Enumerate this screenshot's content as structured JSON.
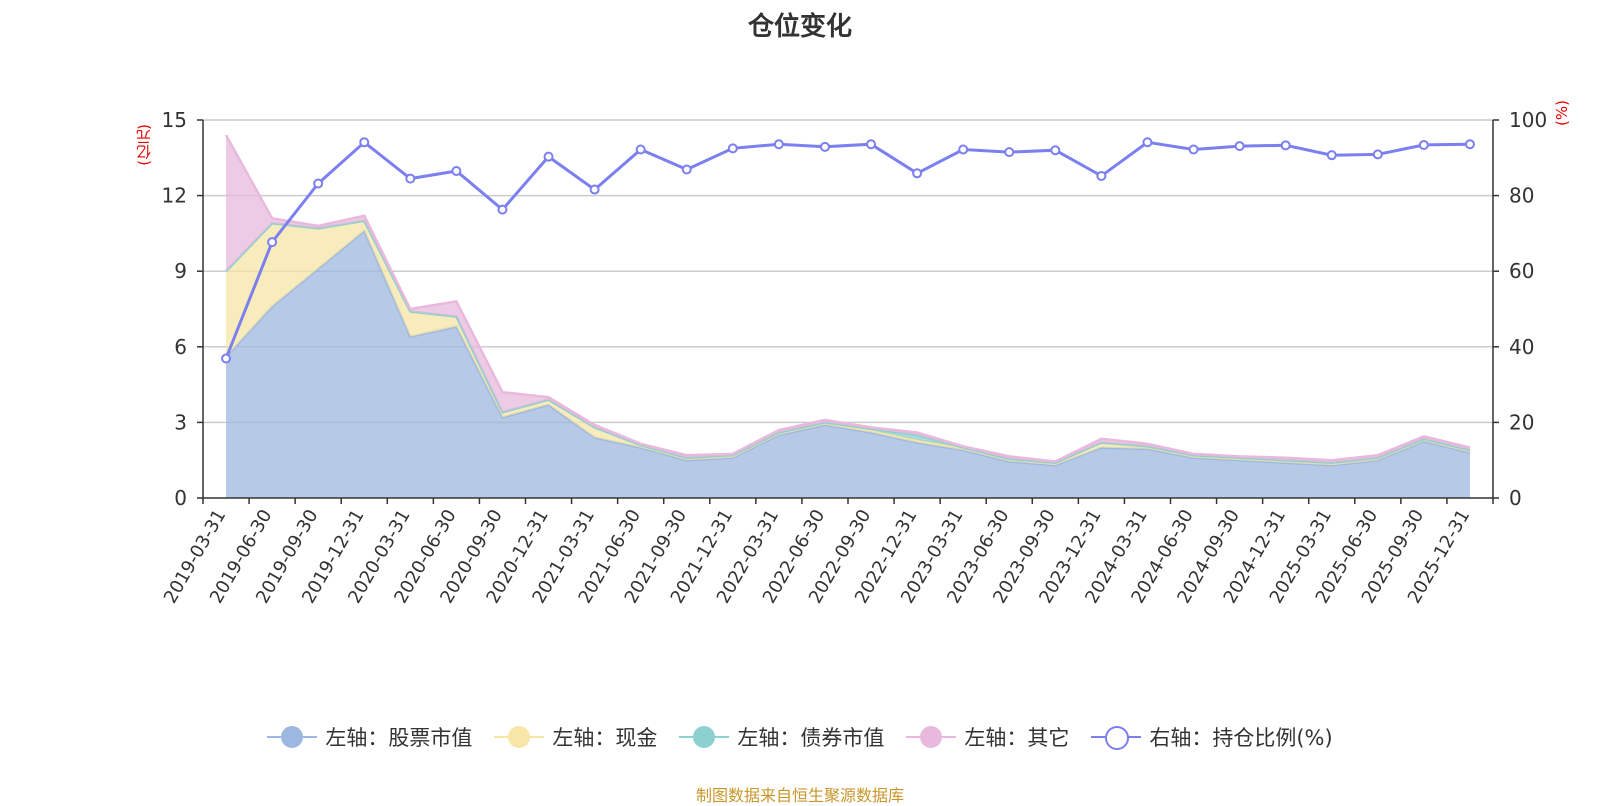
{
  "chart_data": {
    "type": "area",
    "title": "仓位变化",
    "left_axis": {
      "unit_label": "(亿元)",
      "ylim": [
        0,
        15
      ],
      "ticks": [
        "0",
        "3",
        "6",
        "9",
        "12",
        "15"
      ]
    },
    "right_axis": {
      "unit_label": "(%)",
      "ylim": [
        0,
        100
      ],
      "ticks": [
        "0",
        "20",
        "40",
        "60",
        "80",
        "100"
      ]
    },
    "categories": [
      "2019-03-31",
      "2019-06-30",
      "2019-09-30",
      "2019-12-31",
      "2020-03-31",
      "2020-06-30",
      "2020-09-30",
      "2020-12-31",
      "2021-03-31",
      "2021-06-30",
      "2021-09-30",
      "2021-12-31",
      "2022-03-31",
      "2022-06-30",
      "2022-09-30",
      "2022-12-31",
      "2023-03-31",
      "2023-06-30",
      "2023-09-30",
      "2023-12-31",
      "2024-03-31",
      "2024-06-30",
      "2024-09-30",
      "2024-12-31",
      "2025-03-31",
      "2025-06-30",
      "2025-09-30",
      "2025-12-31"
    ],
    "series": [
      {
        "name": "左轴：股票市值",
        "axis": "left",
        "color": "#9db8e0",
        "values": [
          5.6,
          7.6,
          9.1,
          10.6,
          6.4,
          6.8,
          3.2,
          3.7,
          2.4,
          2.0,
          1.5,
          1.6,
          2.5,
          2.9,
          2.6,
          2.2,
          1.9,
          1.45,
          1.3,
          2.0,
          1.95,
          1.6,
          1.5,
          1.4,
          1.3,
          1.5,
          2.25,
          1.8
        ]
      },
      {
        "name": "左轴：现金",
        "axis": "left",
        "color": "#f7e6a5",
        "values": [
          3.4,
          3.3,
          1.6,
          0.4,
          1.0,
          0.4,
          0.2,
          0.2,
          0.4,
          0.1,
          0.1,
          0.1,
          0.1,
          0.1,
          0.1,
          0.1,
          0.1,
          0.1,
          0.1,
          0.2,
          0.1,
          0.1,
          0.1,
          0.1,
          0.1,
          0.1,
          0.1,
          0.1
        ]
      },
      {
        "name": "左轴：债券市值",
        "axis": "left",
        "color": "#8dd0d0",
        "values": [
          0,
          0,
          0,
          0,
          0,
          0,
          0,
          0,
          0,
          0,
          0,
          0,
          0,
          0,
          0.05,
          0.2,
          0,
          0,
          0,
          0,
          0,
          0,
          0,
          0,
          0,
          0,
          0,
          0
        ]
      },
      {
        "name": "左轴：其它",
        "axis": "left",
        "color": "#e8b9dc",
        "values": [
          5.4,
          0.2,
          0.1,
          0.2,
          0.1,
          0.6,
          0.8,
          0.1,
          0.1,
          0.05,
          0.1,
          0.05,
          0.1,
          0.1,
          0.05,
          0.1,
          0.05,
          0.1,
          0.05,
          0.15,
          0.1,
          0.05,
          0.05,
          0.1,
          0.1,
          0.1,
          0.1,
          0.1
        ]
      },
      {
        "name": "右轴：持仓比例(%)",
        "axis": "right",
        "color": "#7b7ff0",
        "values": [
          36.9,
          67.7,
          83.2,
          94.1,
          84.5,
          86.5,
          76.3,
          90.3,
          81.6,
          92.2,
          86.9,
          92.5,
          93.6,
          92.9,
          93.6,
          85.9,
          92.2,
          91.5,
          92.0,
          85.2,
          94.1,
          92.2,
          93.1,
          93.3,
          90.7,
          90.9,
          93.4,
          93.6
        ]
      }
    ],
    "source": "制图数据来自恒生聚源数据库"
  }
}
